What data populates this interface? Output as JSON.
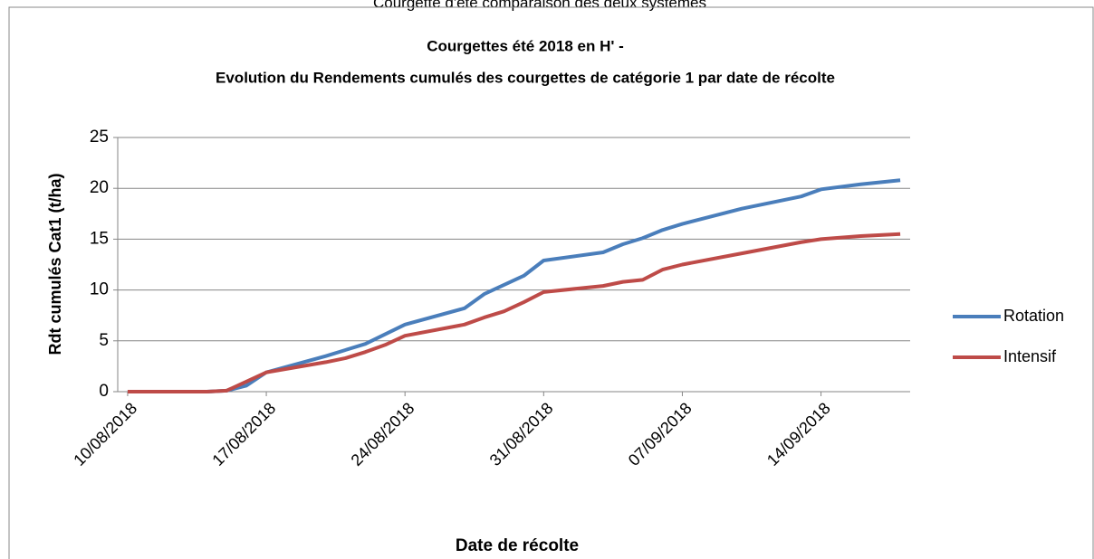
{
  "chart_data": {
    "type": "line",
    "page_title": "Courgette d'été comparaison des deux systèmes",
    "title": "Courgettes été 2018 en H' -",
    "subtitle": "Evolution du  Rendements cumulés des courgettes de catégorie 1  par date de récolte",
    "x_label": "Date de récolte",
    "y_label": "Rdt cumulés Cat1 (t/ha)",
    "xlim": [
      "10/08/2018",
      "18/09/2018"
    ],
    "xticks": [
      "10/08/2018",
      "17/08/2018",
      "24/08/2018",
      "31/08/2018",
      "07/09/2018",
      "14/09/2018"
    ],
    "ylim": [
      0,
      25
    ],
    "yticks": [
      0,
      5,
      10,
      15,
      20,
      25
    ],
    "grid": true,
    "legend": "right",
    "series": [
      {
        "name": "Rotation",
        "color": "#4a7ebb",
        "x": [
          "10/08/2018",
          "14/08/2018",
          "15/08/2018",
          "16/08/2018",
          "17/08/2018",
          "20/08/2018",
          "22/08/2018",
          "24/08/2018",
          "27/08/2018",
          "28/08/2018",
          "30/08/2018",
          "31/08/2018",
          "03/09/2018",
          "04/09/2018",
          "05/09/2018",
          "06/09/2018",
          "07/09/2018",
          "10/09/2018",
          "11/09/2018",
          "13/09/2018",
          "14/09/2018",
          "16/09/2018",
          "18/09/2018"
        ],
        "values": [
          0,
          0,
          0.1,
          0.6,
          1.9,
          3.5,
          4.7,
          6.6,
          8.2,
          9.6,
          11.4,
          12.9,
          13.7,
          14.5,
          15.1,
          15.9,
          16.5,
          18.0,
          18.4,
          19.2,
          19.9,
          20.4,
          20.8
        ]
      },
      {
        "name": "Intensif",
        "color": "#be4b48",
        "x": [
          "10/08/2018",
          "14/08/2018",
          "15/08/2018",
          "16/08/2018",
          "17/08/2018",
          "20/08/2018",
          "21/08/2018",
          "22/08/2018",
          "23/08/2018",
          "24/08/2018",
          "27/08/2018",
          "28/08/2018",
          "29/08/2018",
          "30/08/2018",
          "31/08/2018",
          "03/09/2018",
          "04/09/2018",
          "05/09/2018",
          "06/09/2018",
          "07/09/2018",
          "10/09/2018",
          "13/09/2018",
          "14/09/2018",
          "16/09/2018",
          "18/09/2018"
        ],
        "values": [
          0,
          0,
          0.1,
          1.0,
          1.9,
          2.9,
          3.3,
          3.9,
          4.6,
          5.5,
          6.6,
          7.3,
          7.9,
          8.8,
          9.8,
          10.4,
          10.8,
          11.0,
          12.0,
          12.5,
          13.6,
          14.7,
          15.0,
          15.3,
          15.5
        ]
      }
    ]
  }
}
